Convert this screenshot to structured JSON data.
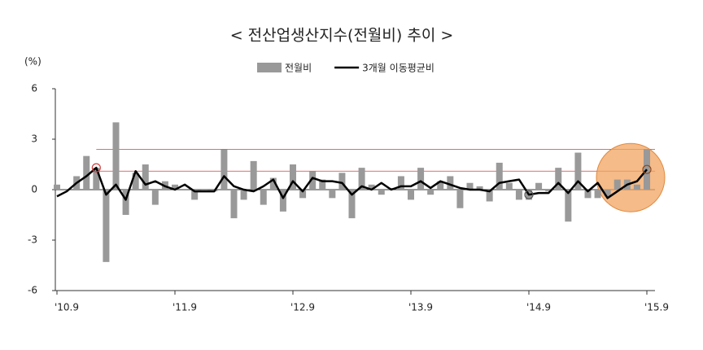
{
  "chart_data": {
    "type": "bar_line",
    "title": "< 전산업생산지수(전월비) 추이 >",
    "y_unit": "(%)",
    "categories": [
      "'10.9",
      null,
      null,
      null,
      null,
      null,
      null,
      null,
      null,
      null,
      null,
      null,
      "'11.9",
      null,
      null,
      null,
      null,
      null,
      null,
      null,
      null,
      null,
      null,
      null,
      "'12.9",
      null,
      null,
      null,
      null,
      null,
      null,
      null,
      null,
      null,
      null,
      null,
      "'13.9",
      null,
      null,
      null,
      null,
      null,
      null,
      null,
      null,
      null,
      null,
      null,
      "'14.9",
      null,
      null,
      null,
      null,
      null,
      null,
      null,
      null,
      null,
      null,
      null,
      "'15.9"
    ],
    "series": [
      {
        "name": "전월비",
        "kind": "bar",
        "color": "#999999",
        "values": [
          0.3,
          0.0,
          0.8,
          2.0,
          1.3,
          -4.3,
          4.0,
          -1.5,
          1.0,
          1.5,
          -0.9,
          0.5,
          0.3,
          0.0,
          -0.6,
          -0.1,
          -0.1,
          2.4,
          -1.7,
          -0.6,
          1.7,
          -0.9,
          0.7,
          -1.3,
          1.5,
          -0.5,
          1.1,
          0.6,
          -0.5,
          1.0,
          -1.7,
          1.3,
          0.3,
          -0.3,
          0.1,
          0.8,
          -0.6,
          1.3,
          -0.3,
          0.5,
          0.8,
          -1.1,
          0.4,
          0.2,
          -0.7,
          1.6,
          0.4,
          -0.6,
          -0.6,
          0.4,
          -0.1,
          1.3,
          -1.9,
          2.2,
          -0.5,
          -0.5,
          -0.4,
          0.6,
          0.6,
          0.3,
          2.4
        ]
      },
      {
        "name": "3개월 이동평균비",
        "kind": "line",
        "color": "#000000",
        "values": [
          -0.4,
          -0.1,
          0.4,
          0.8,
          1.3,
          -0.3,
          0.3,
          -0.6,
          1.1,
          0.3,
          0.5,
          0.2,
          0.0,
          0.3,
          -0.1,
          -0.1,
          -0.1,
          0.8,
          0.2,
          0.0,
          -0.1,
          0.2,
          0.6,
          -0.5,
          0.5,
          -0.1,
          0.7,
          0.5,
          0.5,
          0.4,
          -0.3,
          0.2,
          0.0,
          0.4,
          0.0,
          0.2,
          0.2,
          0.5,
          0.1,
          0.5,
          0.3,
          0.1,
          0.0,
          0.0,
          -0.1,
          0.4,
          0.5,
          0.6,
          -0.3,
          -0.2,
          -0.2,
          0.4,
          -0.2,
          0.5,
          -0.1,
          0.4,
          -0.5,
          -0.1,
          0.3,
          0.5,
          1.2
        ]
      }
    ],
    "reference_lines": {
      "values": [
        2.4,
        1.1
      ],
      "color": "#d04040"
    },
    "ylim": [
      -6,
      6
    ],
    "yticks": [
      -6,
      -3,
      0,
      3,
      6
    ]
  }
}
